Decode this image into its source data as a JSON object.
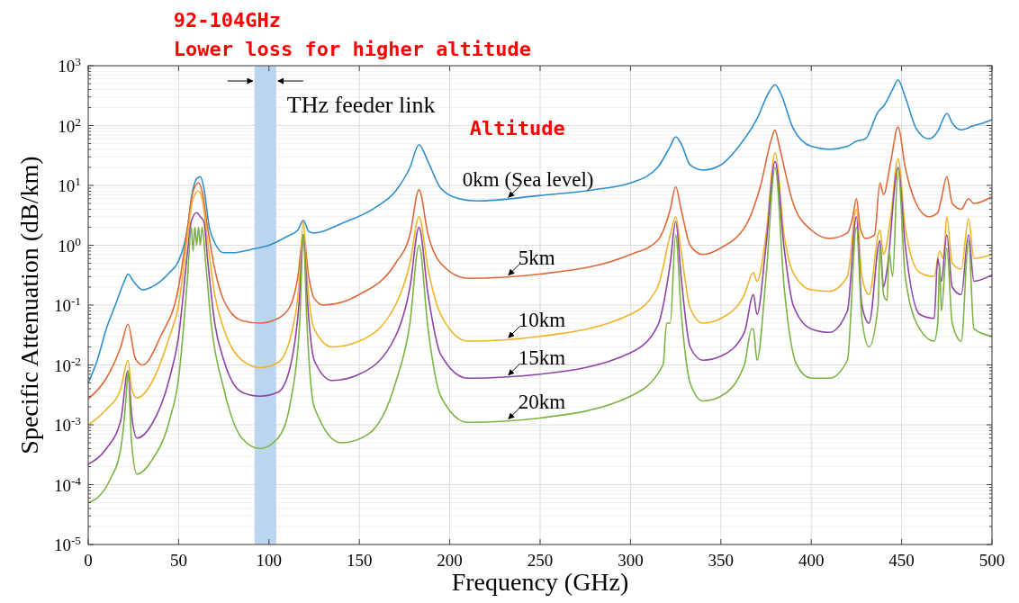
{
  "chart_data": {
    "type": "line",
    "xlabel": "Frequency (GHz)",
    "ylabel": "Specific Attenuation (dB/km)",
    "legend_title": "Altitude",
    "log": "y",
    "grid": true,
    "xlim": [
      0,
      500
    ],
    "xticks": [
      0,
      50,
      100,
      150,
      200,
      250,
      300,
      350,
      400,
      450,
      500
    ],
    "ylim": [
      1e-05,
      1000
    ],
    "yticks": [
      {
        "value": 1e-05,
        "label": "10$^{-5}$"
      },
      {
        "value": 0.0001,
        "label": "10$^{-4}$"
      },
      {
        "value": 0.001,
        "label": "10$^{-3}$"
      },
      {
        "value": 0.01,
        "label": "10$^{-2}$"
      },
      {
        "value": 0.1,
        "label": "10$^{-1}$"
      },
      {
        "value": 1,
        "label": "10$^{0}$"
      },
      {
        "value": 10,
        "label": "10$^{1}$"
      },
      {
        "value": 100,
        "label": "10$^{2}$"
      },
      {
        "value": 1000,
        "label": "10$^{3}$"
      }
    ],
    "annotations": [
      "92-104GHz",
      "Lower loss for higher altitude"
    ],
    "bands": [
      {
        "axis": "x",
        "from": 92,
        "to": 104,
        "label": "THz feeder link",
        "color": "#bcd5ee"
      }
    ],
    "series": [
      {
        "name": "0km (Sea level)",
        "color": "#2e8fd0",
        "x": [
          0,
          5,
          10,
          15,
          20,
          22,
          25,
          30,
          35,
          40,
          45,
          50,
          55,
          57,
          60,
          62,
          64,
          67,
          70,
          75,
          80,
          90,
          100,
          110,
          116,
          119,
          122,
          125,
          140,
          160,
          170,
          178,
          183,
          188,
          195,
          205,
          215,
          250,
          280,
          300,
          315,
          322,
          325,
          328,
          333,
          340,
          350,
          360,
          370,
          377,
          380,
          383,
          390,
          400,
          410,
          420,
          425,
          430,
          437,
          440,
          445,
          448,
          452,
          458,
          465,
          470,
          472,
          475,
          478,
          483,
          490,
          495,
          500
        ],
        "values": [
          0.005,
          0.012,
          0.04,
          0.1,
          0.25,
          0.33,
          0.25,
          0.18,
          0.2,
          0.25,
          0.35,
          0.55,
          2,
          6,
          13,
          14,
          9,
          2,
          1.1,
          0.75,
          0.75,
          0.85,
          1,
          1.4,
          1.8,
          2.6,
          1.7,
          1.6,
          2.3,
          4.5,
          8,
          20,
          48,
          25,
          9,
          6,
          5.5,
          6.8,
          8.5,
          11,
          20,
          45,
          65,
          50,
          22,
          18,
          22,
          45,
          130,
          380,
          480,
          350,
          90,
          45,
          40,
          45,
          55,
          60,
          170,
          210,
          400,
          580,
          300,
          90,
          60,
          80,
          110,
          160,
          110,
          85,
          100,
          110,
          125
        ]
      },
      {
        "name": "5km",
        "color": "#e0693a",
        "x": [
          0,
          10,
          18,
          22,
          26,
          30,
          40,
          50,
          55,
          58,
          61,
          63,
          66,
          70,
          75,
          85,
          95,
          105,
          112,
          116,
          119,
          122,
          125,
          130,
          150,
          170,
          178,
          183,
          188,
          195,
          210,
          250,
          300,
          315,
          322,
          325,
          328,
          333,
          340,
          350,
          365,
          372,
          378,
          380,
          382,
          390,
          400,
          410,
          420,
          423,
          425,
          427,
          430,
          435,
          438,
          440,
          444,
          448,
          452,
          458,
          465,
          470,
          472,
          475,
          478,
          483,
          487,
          490,
          500
        ],
        "values": [
          0.0027,
          0.006,
          0.02,
          0.048,
          0.013,
          0.01,
          0.03,
          0.2,
          2,
          8,
          11,
          8,
          2,
          0.4,
          0.12,
          0.055,
          0.05,
          0.06,
          0.1,
          0.3,
          1.5,
          0.3,
          0.13,
          0.1,
          0.15,
          0.5,
          1.5,
          8.5,
          1.5,
          0.5,
          0.28,
          0.33,
          0.7,
          1.2,
          4,
          9.5,
          4,
          1,
          0.7,
          0.9,
          2.5,
          10,
          60,
          85,
          50,
          5,
          1.8,
          1.3,
          1.6,
          3,
          6,
          2,
          1.3,
          1.5,
          11,
          7,
          25,
          95,
          20,
          5,
          3,
          3.5,
          6,
          14,
          5,
          4,
          6,
          5,
          6.5
        ]
      },
      {
        "name": "10km",
        "color": "#f0b429",
        "x": [
          0,
          10,
          18,
          22,
          24,
          27,
          35,
          45,
          50,
          55,
          58,
          61,
          63,
          66,
          70,
          75,
          85,
          95,
          105,
          112,
          117,
          119,
          121,
          125,
          135,
          150,
          170,
          178,
          183,
          188,
          195,
          210,
          250,
          300,
          315,
          322,
          325,
          328,
          333,
          340,
          350,
          363,
          368,
          370,
          375,
          380,
          385,
          390,
          400,
          410,
          420,
          425,
          428,
          432,
          438,
          440,
          444,
          448,
          452,
          460,
          468,
          471,
          473,
          475,
          478,
          483,
          487,
          490,
          500
        ],
        "values": [
          0.001,
          0.0018,
          0.004,
          0.012,
          0.004,
          0.0028,
          0.005,
          0.03,
          0.1,
          1.5,
          6,
          8,
          6,
          1.2,
          0.15,
          0.04,
          0.012,
          0.009,
          0.011,
          0.03,
          0.3,
          2.5,
          0.3,
          0.04,
          0.02,
          0.025,
          0.1,
          0.5,
          3,
          0.4,
          0.07,
          0.025,
          0.03,
          0.07,
          0.2,
          1.5,
          3,
          0.8,
          0.09,
          0.05,
          0.06,
          0.15,
          0.35,
          0.25,
          1.5,
          35,
          1.5,
          0.35,
          0.18,
          0.17,
          0.3,
          4,
          0.3,
          0.15,
          1.8,
          0.7,
          3,
          28,
          2,
          0.35,
          0.3,
          0.8,
          0.6,
          3,
          0.5,
          0.4,
          2.8,
          0.6,
          0.7
        ]
      },
      {
        "name": "15km",
        "color": "#8e44a8",
        "x": [
          0,
          10,
          18,
          22,
          24,
          27,
          35,
          45,
          50,
          55,
          57,
          60,
          62,
          64,
          66,
          70,
          75,
          85,
          95,
          105,
          112,
          117,
          119,
          121,
          125,
          135,
          150,
          170,
          178,
          183,
          188,
          195,
          210,
          250,
          300,
          315,
          322,
          325,
          328,
          333,
          340,
          350,
          363,
          368,
          370,
          375,
          380,
          385,
          390,
          400,
          410,
          420,
          425,
          428,
          432,
          438,
          440,
          442,
          448,
          452,
          460,
          468,
          470,
          472,
          475,
          478,
          483,
          487,
          490,
          500
        ],
        "values": [
          0.00022,
          0.0004,
          0.0012,
          0.008,
          0.0015,
          0.0006,
          0.001,
          0.006,
          0.03,
          0.8,
          2.5,
          3.5,
          3,
          2.5,
          0.6,
          0.05,
          0.012,
          0.0035,
          0.003,
          0.0035,
          0.01,
          0.15,
          1.5,
          0.15,
          0.012,
          0.0055,
          0.007,
          0.03,
          0.2,
          2,
          0.15,
          0.015,
          0.006,
          0.007,
          0.016,
          0.045,
          0.5,
          2.5,
          0.3,
          0.02,
          0.012,
          0.014,
          0.035,
          0.15,
          0.07,
          1,
          25,
          0.9,
          0.1,
          0.04,
          0.035,
          0.08,
          3,
          0.1,
          0.05,
          1.2,
          0.2,
          0.4,
          20,
          1,
          0.07,
          0.06,
          0.6,
          0.25,
          1.5,
          0.2,
          0.15,
          1.5,
          0.25,
          0.32
        ]
      },
      {
        "name": "20km",
        "color": "#7cb342",
        "x": [
          0,
          5,
          12,
          18,
          21,
          22,
          24,
          27,
          35,
          45,
          50,
          55,
          57,
          58,
          59,
          60,
          61,
          62,
          63,
          65,
          68,
          75,
          85,
          95,
          105,
          112,
          117,
          119,
          121,
          125,
          140,
          155,
          170,
          178,
          183,
          188,
          195,
          210,
          250,
          300,
          318,
          320,
          322,
          325,
          328,
          333,
          340,
          350,
          363,
          367,
          368,
          370,
          375,
          380,
          385,
          392,
          400,
          410,
          420,
          425,
          428,
          432,
          437,
          438,
          440,
          442,
          443,
          445,
          448,
          452,
          460,
          468,
          470,
          471,
          472,
          475,
          478,
          483,
          487,
          490,
          500
        ],
        "values": [
          5e-05,
          6e-05,
          0.00012,
          0.0004,
          0.003,
          0.008,
          0.0005,
          0.00015,
          0.00025,
          0.0012,
          0.006,
          0.3,
          2,
          0.8,
          2,
          1,
          2,
          1,
          2,
          0.5,
          0.05,
          0.004,
          0.0006,
          0.0004,
          0.0006,
          0.0025,
          0.05,
          1.5,
          0.05,
          0.002,
          0.0005,
          0.0007,
          0.005,
          0.05,
          1,
          0.04,
          0.003,
          0.0011,
          0.0013,
          0.003,
          0.01,
          0.05,
          0.05,
          1.5,
          0.08,
          0.005,
          0.0025,
          0.003,
          0.01,
          0.04,
          0.04,
          0.012,
          0.3,
          20,
          0.2,
          0.01,
          0.006,
          0.006,
          0.012,
          2,
          0.06,
          0.02,
          0.1,
          1,
          0.15,
          0.12,
          0.8,
          0.3,
          20,
          0.3,
          0.04,
          0.025,
          0.05,
          0.5,
          0.08,
          0.9,
          0.05,
          0.025,
          1.2,
          0.04,
          0.03
        ]
      }
    ]
  }
}
